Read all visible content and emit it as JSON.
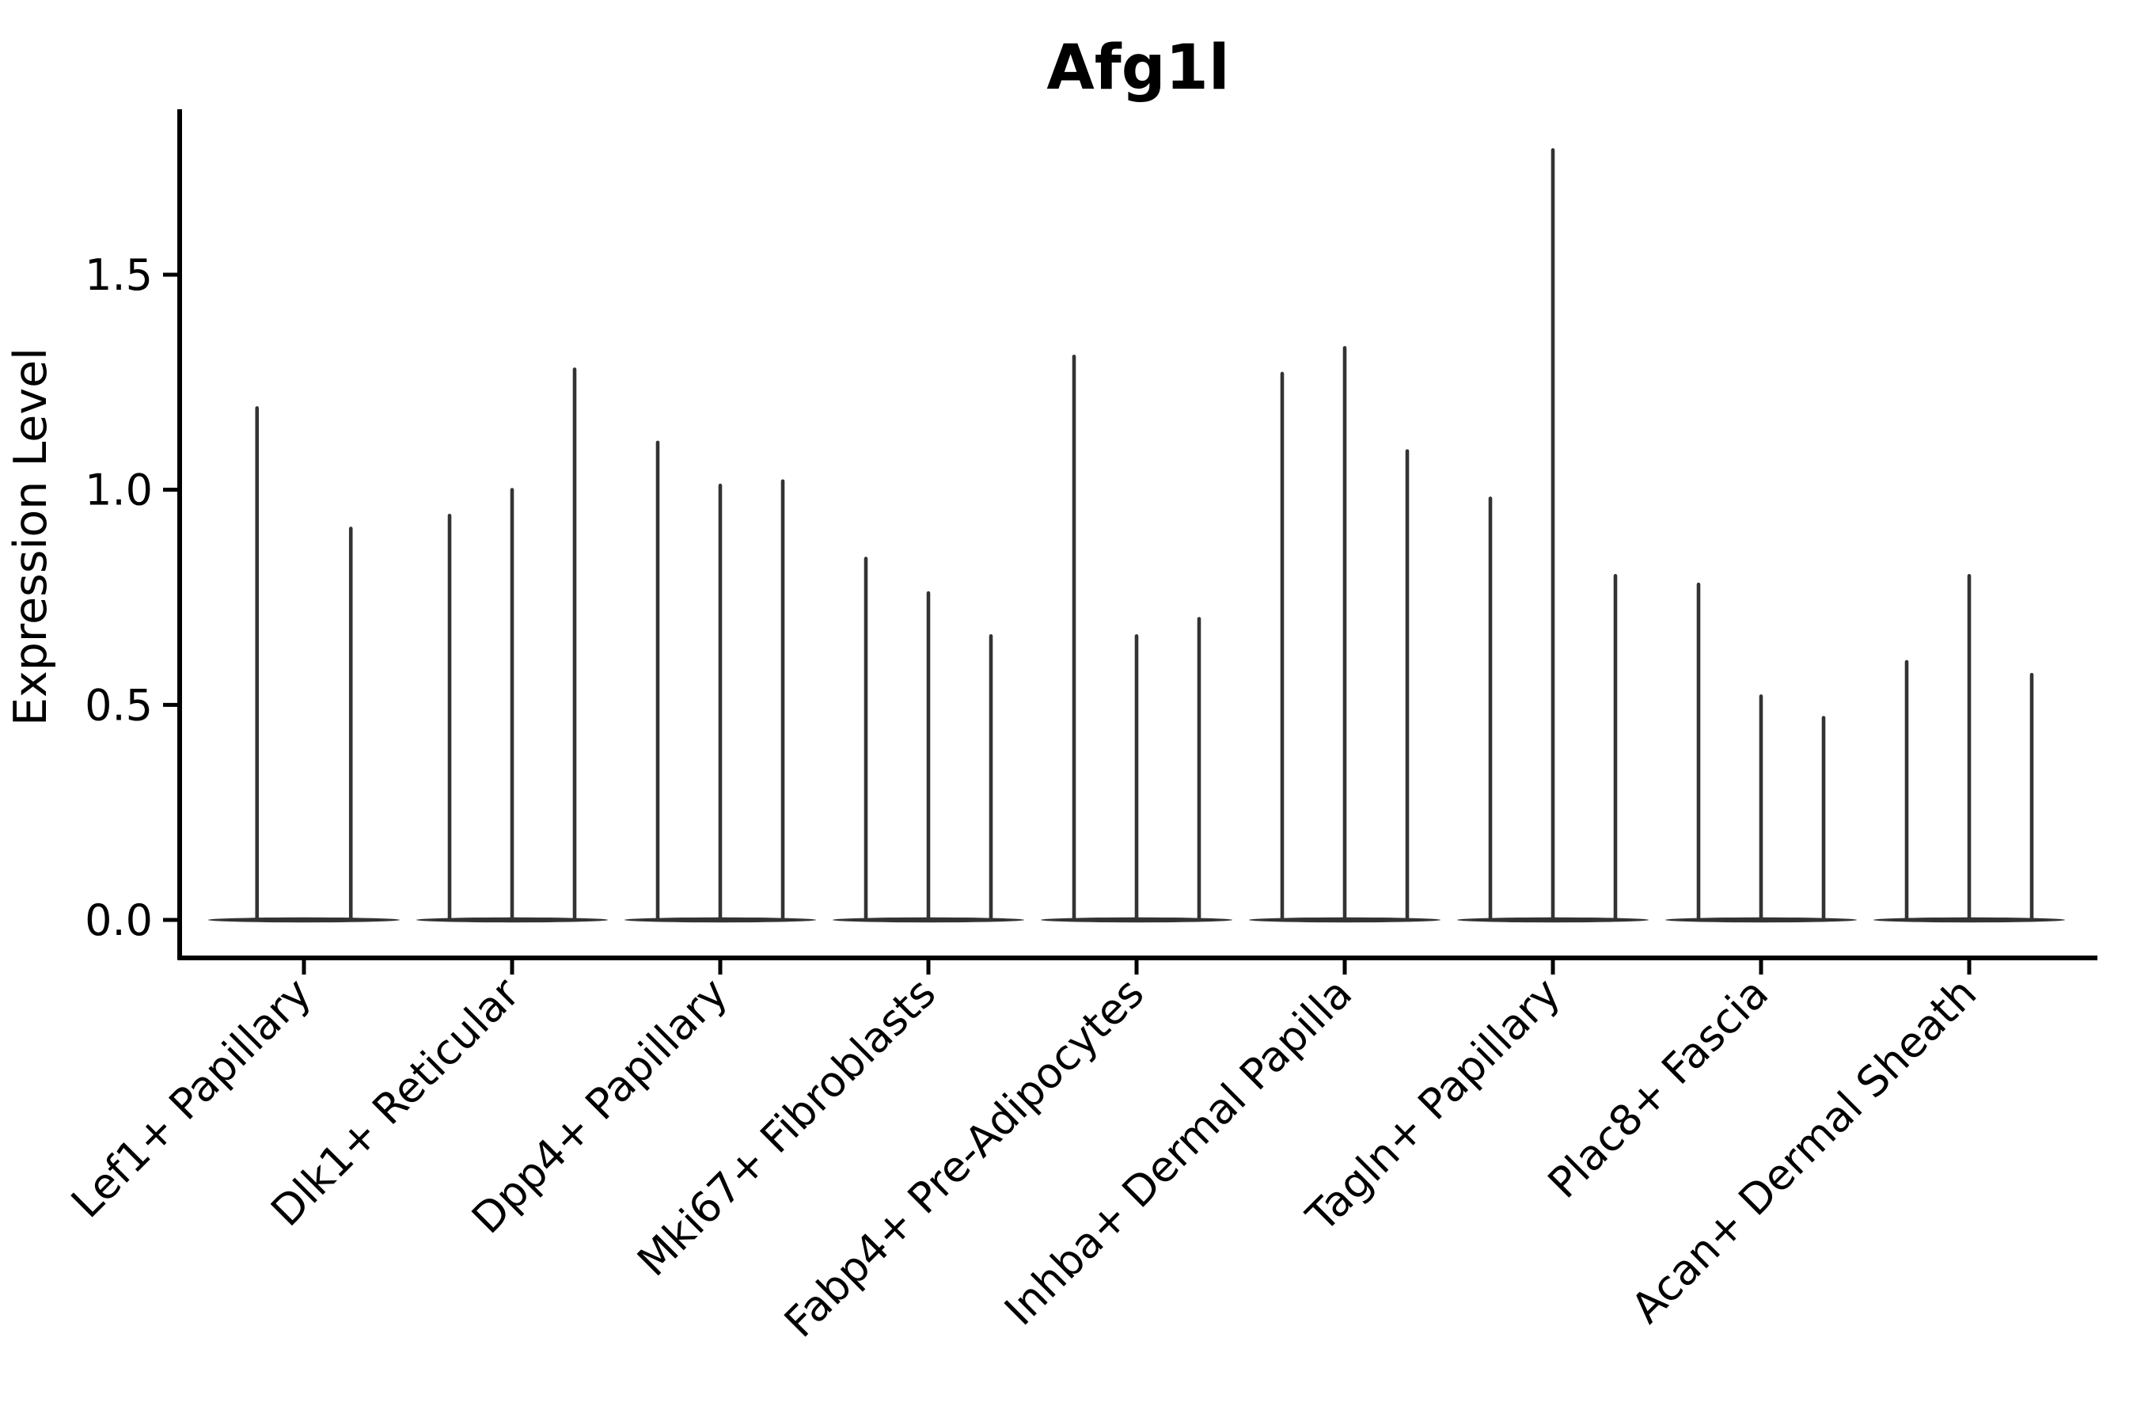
{
  "figure": {
    "background": "#ffffff"
  },
  "chart_data": {
    "type": "violin",
    "title": "Afg1l",
    "ylabel": "Expression Level",
    "xlabel": "",
    "ylim": [
      0,
      1.88
    ],
    "grid": false,
    "legend_position": "none",
    "yticks": {
      "values": [
        0,
        0.5,
        1.0,
        1.5
      ],
      "labels": [
        "0.0",
        "0.5",
        "1.0",
        "1.5"
      ]
    },
    "categories": [
      "Lef1+ Papillary",
      "Dlk1+ Reticular",
      "Dpp4+ Papillary",
      "Mki67+ Fibroblasts",
      "Fabp4+ Pre-Adipocytes",
      "Inhba+ Dermal Papilla",
      "Tagln+ Papillary",
      "Plac8+ Fascia",
      "Acan+ Dermal Sheath"
    ],
    "groups": [
      {
        "category": "Lef1+ Papillary",
        "violin_max_expression": [
          1.19,
          0.91
        ]
      },
      {
        "category": "Dlk1+ Reticular",
        "violin_max_expression": [
          0.94,
          1.0,
          1.28
        ]
      },
      {
        "category": "Dpp4+ Papillary",
        "violin_max_expression": [
          1.11,
          1.01,
          1.02
        ]
      },
      {
        "category": "Mki67+ Fibroblasts",
        "violin_max_expression": [
          0.84,
          0.76,
          0.66
        ]
      },
      {
        "category": "Fabp4+ Pre-Adipocytes",
        "violin_max_expression": [
          1.31,
          0.66,
          0.7
        ]
      },
      {
        "category": "Inhba+ Dermal Papilla",
        "violin_max_expression": [
          1.27,
          1.33,
          1.09
        ]
      },
      {
        "category": "Tagln+ Papillary",
        "violin_max_expression": [
          0.98,
          1.79,
          0.8
        ]
      },
      {
        "category": "Plac8+ Fascia",
        "violin_max_expression": [
          0.78,
          0.52,
          0.47
        ]
      },
      {
        "category": "Acan+ Dermal Sheath",
        "violin_max_expression": [
          0.6,
          0.8,
          0.57
        ]
      }
    ],
    "style": {
      "violin_color": "#333333",
      "axis_color": "#000000"
    }
  }
}
